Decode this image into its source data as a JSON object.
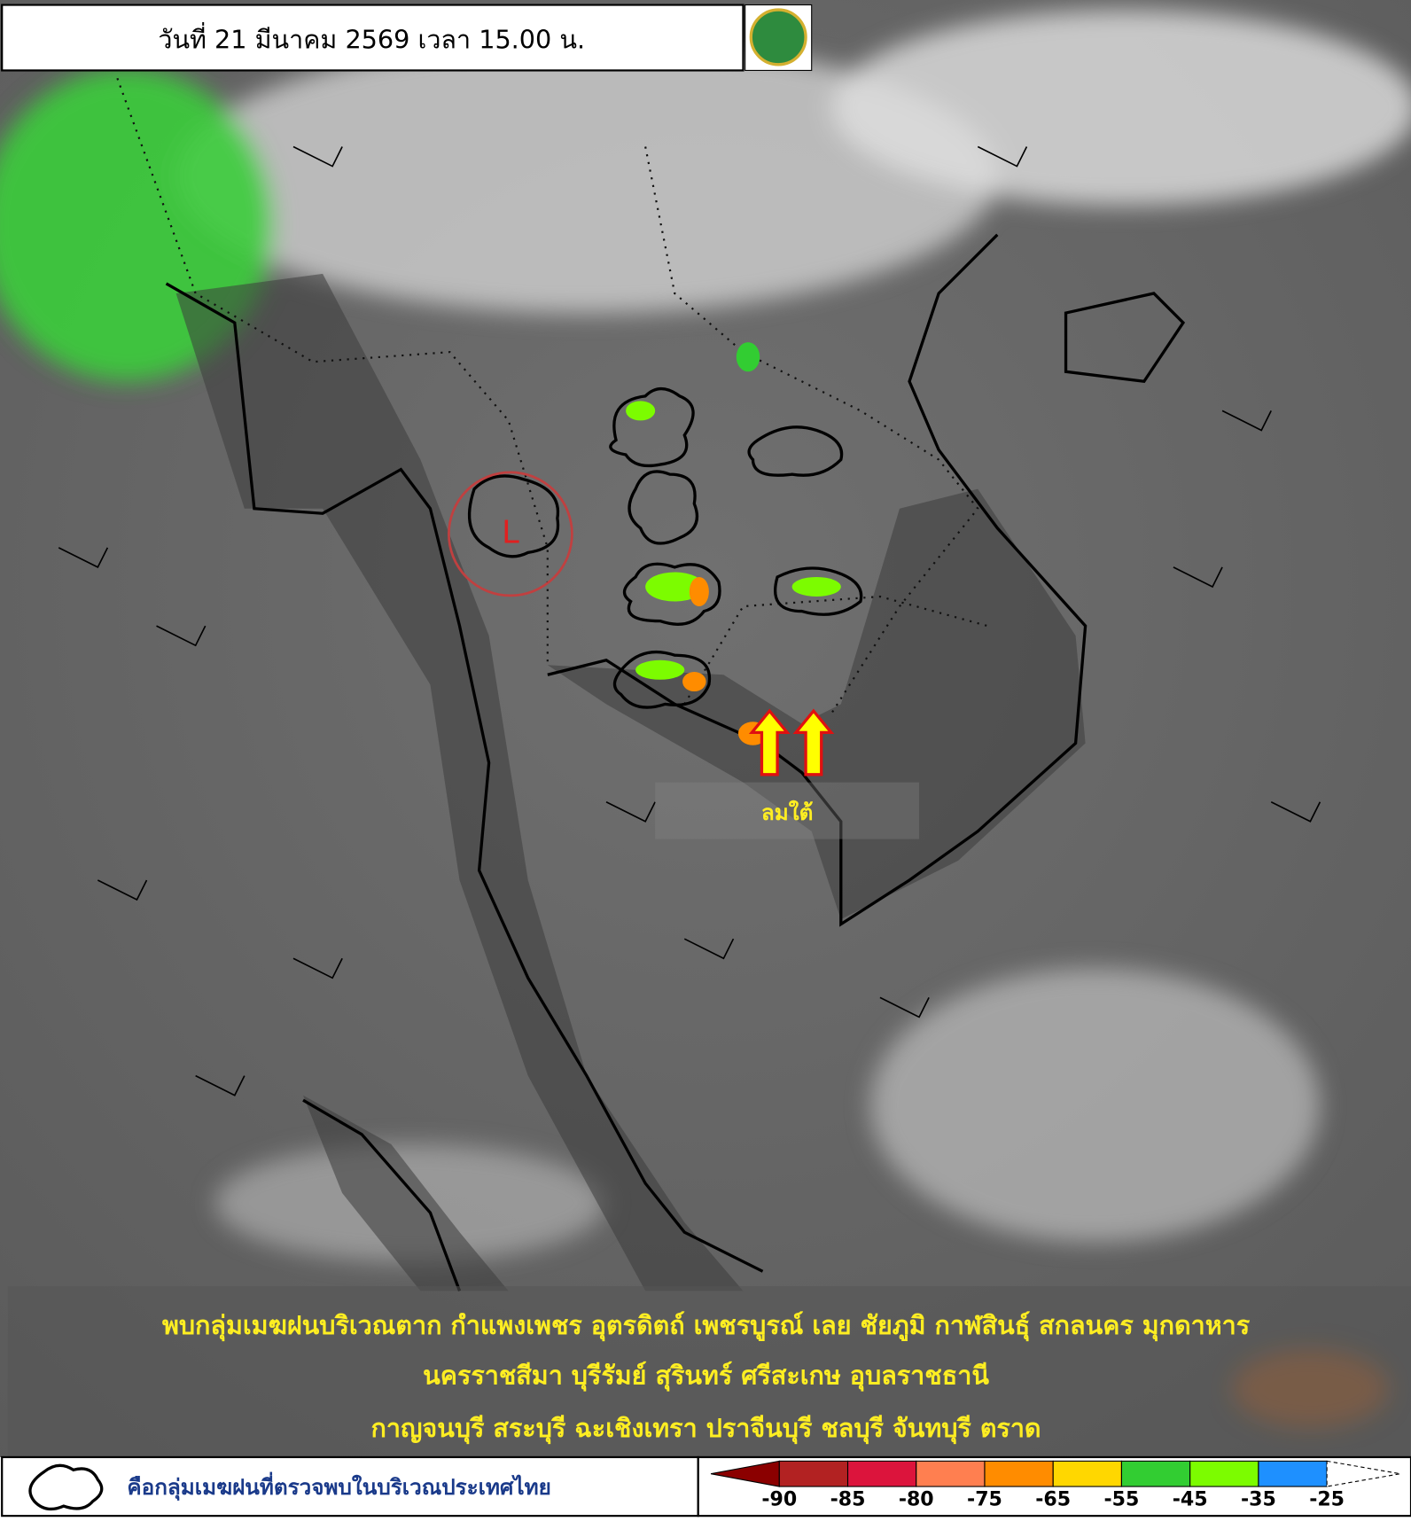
{
  "header": {
    "title": "วันที่ 21 มีนาคม 2569 เวลา 15.00 น."
  },
  "annotations": {
    "low_pressure": "L",
    "wind": "ลมใต้"
  },
  "summary": [
    "พบกลุ่มเมฆฝนบริเวณตาก กำแพงเพชร อุตรดิตถ์ เพชรบูรณ์ เลย ชัยภูมิ กาฬสินธุ์ สกลนคร มุกดาหาร",
    "นครราชสีมา บุรีรัมย์ สุรินทร์ ศรีสะเกษ อุบลราชธานี",
    "กาญจนบุรี สระบุรี ฉะเชิงเทรา ปราจีนบุรี ชลบุรี จันทบุรี ตราด"
  ],
  "legend": {
    "cloud_label": "คือกลุ่มเมฆฝนที่ตรวจพบในบริเวณประเทศไทย",
    "colorbar": {
      "labels": [
        "-90",
        "-85",
        "-80",
        "-75",
        "-65",
        "-55",
        "-45",
        "-35",
        "-25"
      ],
      "colors": [
        "#8b0000",
        "#b22222",
        "#dc143c",
        "#ff7f50",
        "#ff8c00",
        "#ffd700",
        "#32cd32",
        "#7cfc00",
        "#1e90ff",
        "#ffffff"
      ]
    }
  }
}
